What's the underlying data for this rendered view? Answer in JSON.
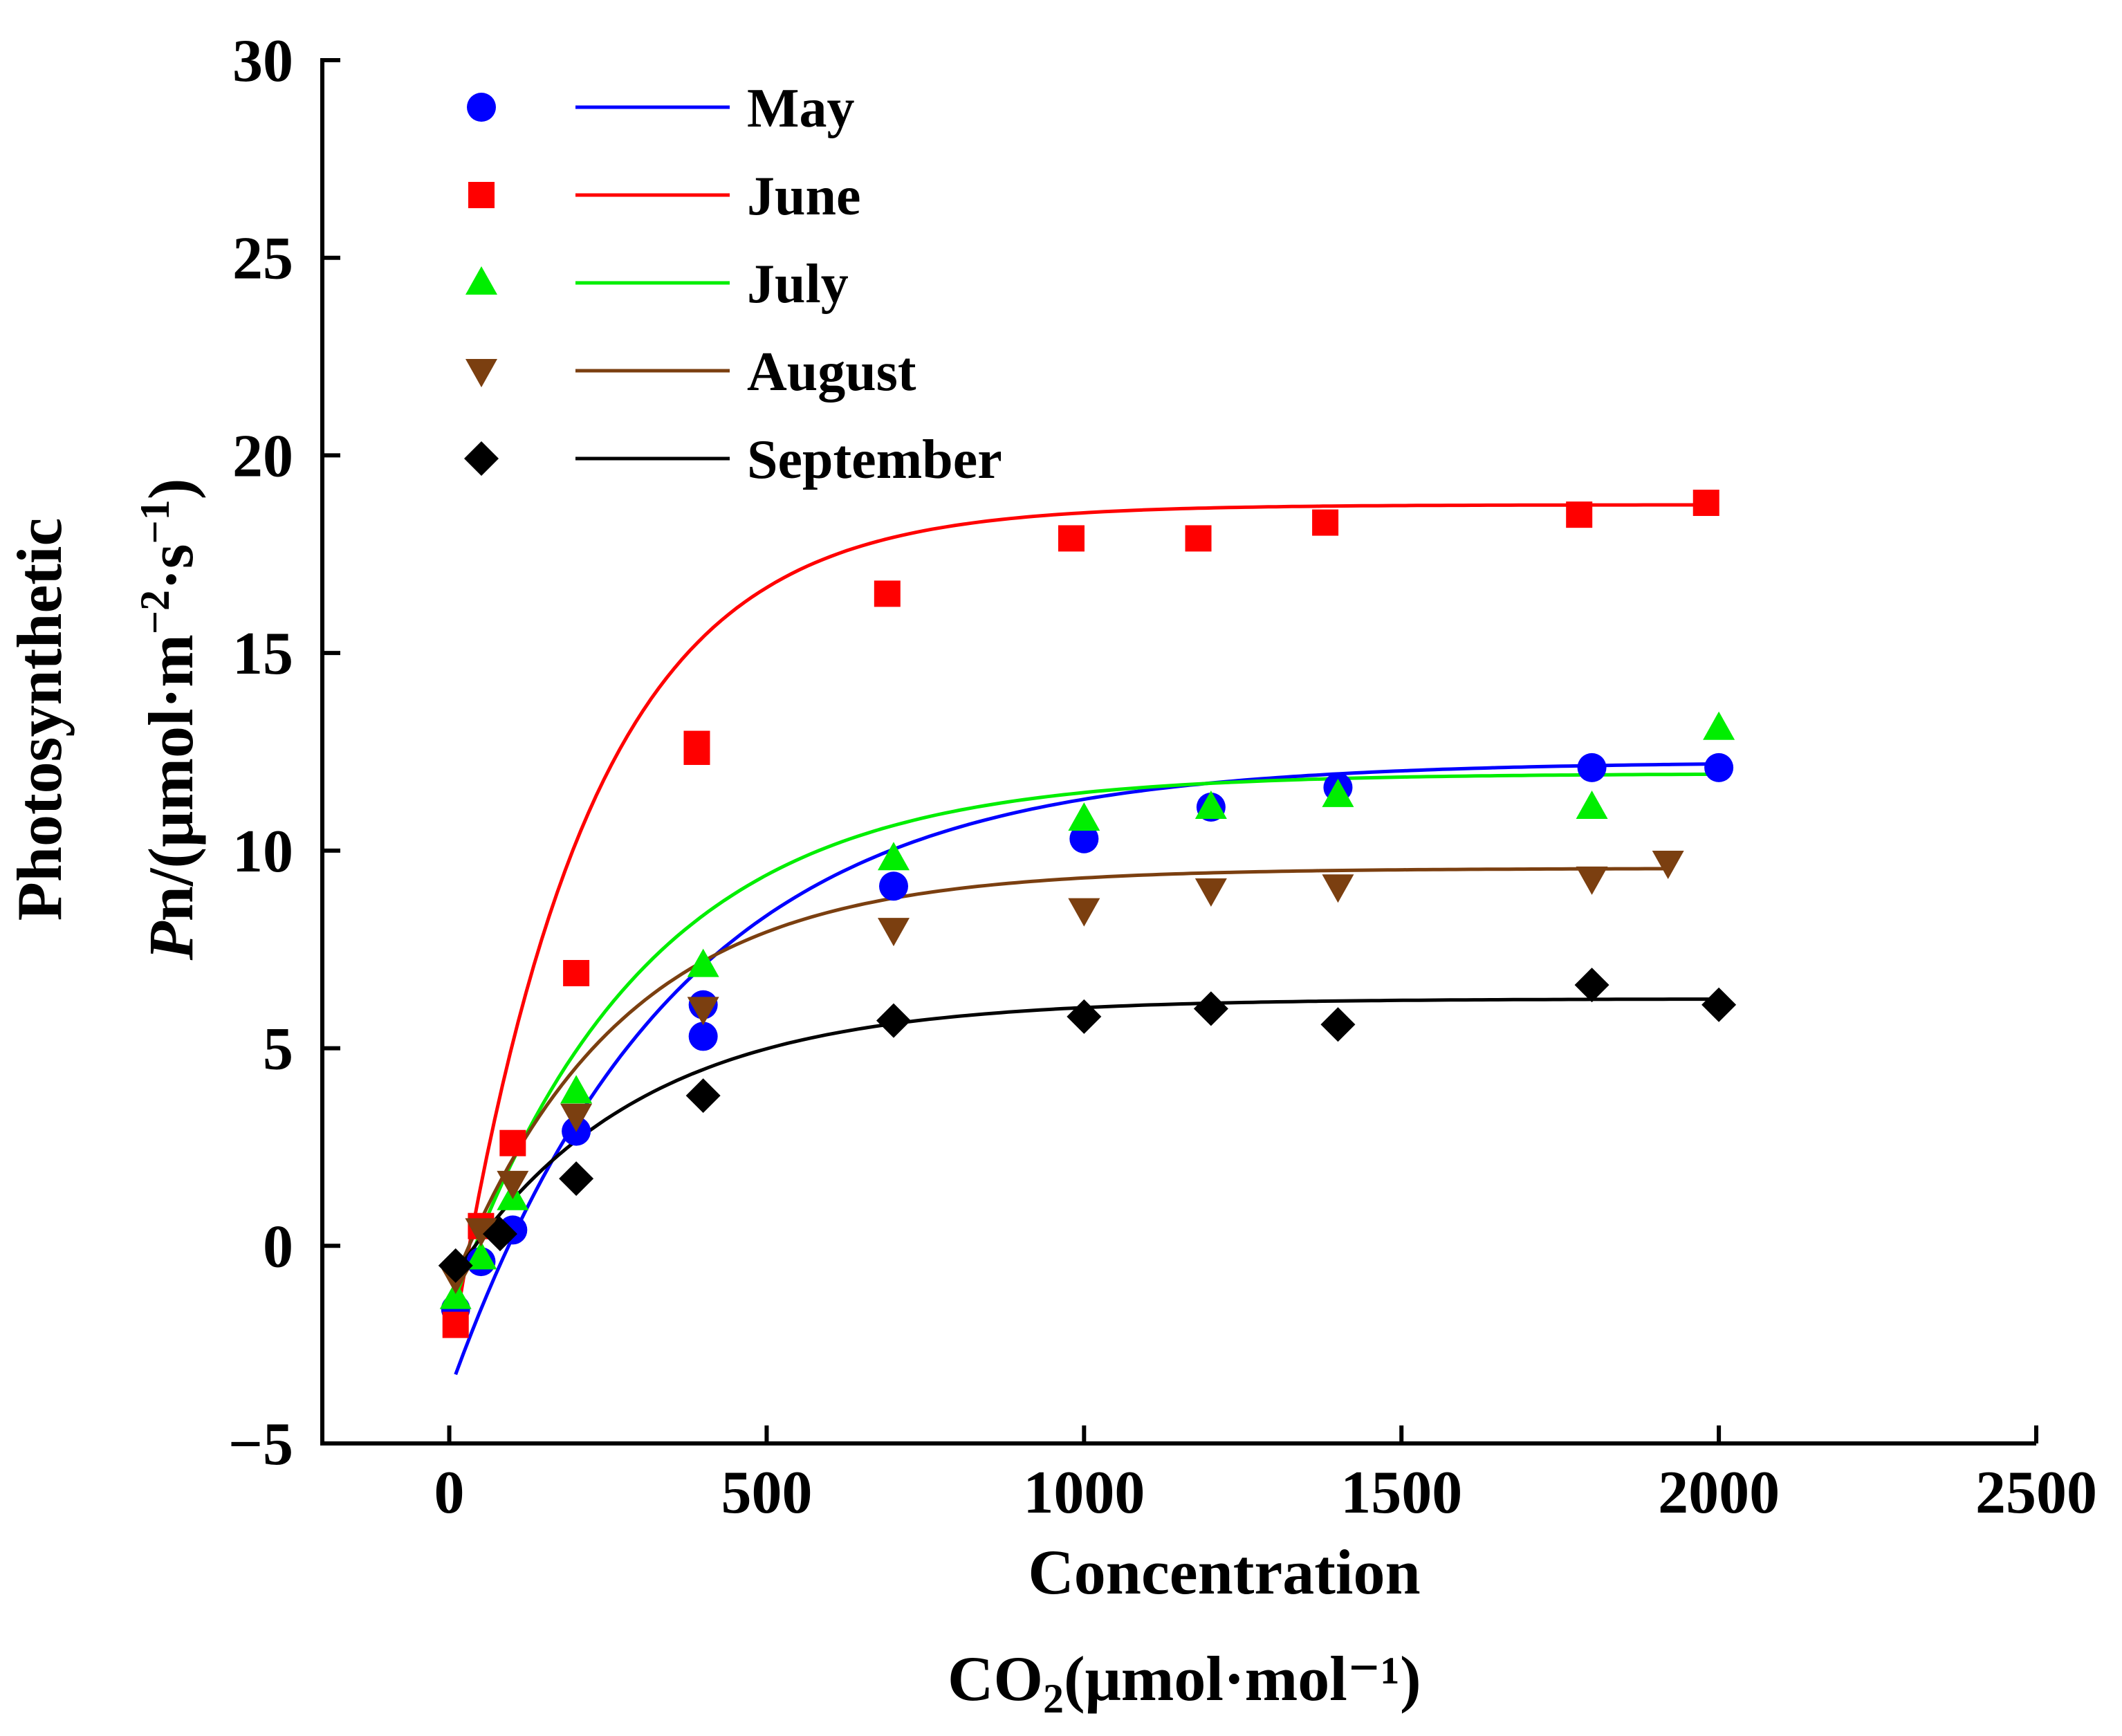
{
  "chart_data": {
    "type": "scatter",
    "title": "",
    "xlabel_line1": "Concentration",
    "xlabel_co2": "CO",
    "xlabel_co2_sub": "2",
    "xlabel_units": "(μmol·mol⁻¹)",
    "ylabel_line1": "Photosynthetic",
    "ylabel_italic": "P",
    "ylabel_mid": "n/(μmol·m",
    "ylabel_exp1": "−2",
    "ylabel_dot": "·s",
    "ylabel_exp2": "−1",
    "ylabel_end": ")",
    "xlim": [
      -200,
      2500
    ],
    "ylim": [
      -5,
      30
    ],
    "xticks": [
      0,
      500,
      1000,
      1500,
      2000,
      2500
    ],
    "yticks": [
      -5,
      0,
      5,
      10,
      15,
      20,
      25,
      30
    ],
    "xtick_labels": [
      "0",
      "500",
      "1000",
      "1500",
      "2000",
      "2500"
    ],
    "ytick_labels": [
      "−5",
      "0",
      "5",
      "10",
      "15",
      "20",
      "25",
      "30"
    ],
    "legend_position": "top-left",
    "grid": false,
    "series": [
      {
        "name": "May",
        "color": "#0000ff",
        "marker": "circle",
        "points": [
          [
            10,
            -1.6
          ],
          [
            50,
            -0.4
          ],
          [
            100,
            0.4
          ],
          [
            200,
            2.9
          ],
          [
            400,
            5.3
          ],
          [
            400,
            6.1
          ],
          [
            700,
            9.1
          ],
          [
            1000,
            10.3
          ],
          [
            1200,
            11.1
          ],
          [
            1400,
            11.6
          ],
          [
            1800,
            12.1
          ],
          [
            2000,
            12.1
          ]
        ],
        "fit": {
          "Pmax": 13.85,
          "k": 0.00282,
          "x0": 50,
          "b": 1.6
        }
      },
      {
        "name": "June",
        "color": "#ff0000",
        "marker": "square",
        "points": [
          [
            10,
            -2.0
          ],
          [
            50,
            0.5
          ],
          [
            100,
            2.6
          ],
          [
            200,
            6.9
          ],
          [
            390,
            12.5
          ],
          [
            390,
            12.7
          ],
          [
            690,
            16.5
          ],
          [
            980,
            17.9
          ],
          [
            1180,
            17.9
          ],
          [
            1380,
            18.3
          ],
          [
            1780,
            18.5
          ],
          [
            1980,
            18.8
          ]
        ],
        "fit": {
          "Pmax": 20.75,
          "k": 0.00468,
          "x0": 10,
          "b": 2.0
        }
      },
      {
        "name": "July",
        "color": "#00ee00",
        "marker": "triangle-up",
        "points": [
          [
            10,
            -1.3
          ],
          [
            50,
            -0.3
          ],
          [
            100,
            1.2
          ],
          [
            200,
            3.9
          ],
          [
            400,
            7.1
          ],
          [
            700,
            9.8
          ],
          [
            1000,
            10.8
          ],
          [
            1200,
            11.1
          ],
          [
            1400,
            11.4
          ],
          [
            1800,
            11.1
          ],
          [
            2000,
            13.1
          ]
        ],
        "fit": {
          "Pmax": 13.25,
          "k": 0.00335,
          "x0": 10,
          "b": 1.3
        }
      },
      {
        "name": "August",
        "color": "#7b3f10",
        "marker": "triangle-down",
        "points": [
          [
            10,
            -0.8
          ],
          [
            50,
            0.4
          ],
          [
            100,
            1.6
          ],
          [
            200,
            3.3
          ],
          [
            400,
            6.0
          ],
          [
            700,
            8.0
          ],
          [
            1000,
            8.5
          ],
          [
            1200,
            9.0
          ],
          [
            1400,
            9.1
          ],
          [
            1800,
            9.3
          ],
          [
            1920,
            9.7
          ]
        ],
        "fit": {
          "Pmax": 10.35,
          "k": 0.0038,
          "x0": 10,
          "b": 0.8
        }
      },
      {
        "name": "September",
        "color": "#000000",
        "marker": "diamond",
        "points": [
          [
            10,
            -0.5
          ],
          [
            80,
            0.3
          ],
          [
            200,
            1.7
          ],
          [
            400,
            3.8
          ],
          [
            700,
            5.7
          ],
          [
            1000,
            5.8
          ],
          [
            1200,
            6.0
          ],
          [
            1400,
            5.6
          ],
          [
            1800,
            6.6
          ],
          [
            2000,
            6.1
          ]
        ],
        "fit": {
          "Pmax": 6.95,
          "k": 0.00348,
          "x0": 10,
          "b": 0.7
        }
      }
    ]
  }
}
